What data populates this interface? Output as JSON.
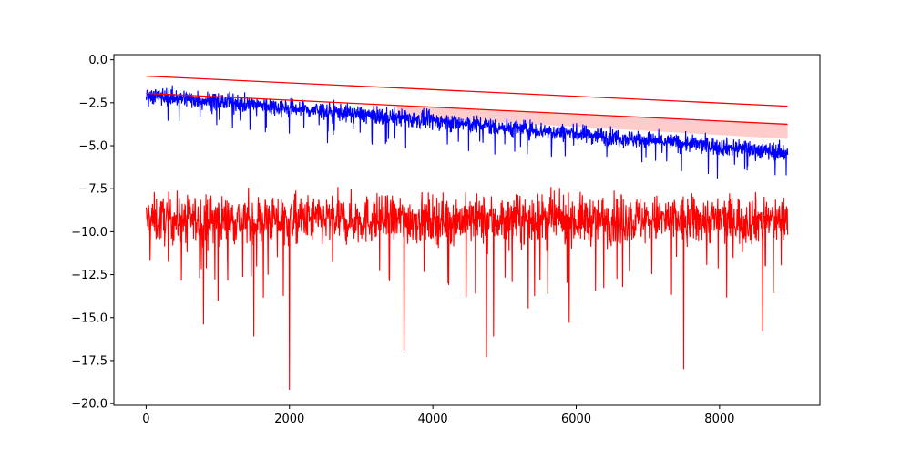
{
  "chart_data": {
    "type": "line",
    "title": "",
    "xlabel": "",
    "ylabel": "",
    "xlim": [
      -450,
      9400
    ],
    "ylim": [
      -20.1,
      0.3
    ],
    "x_ticks": [
      0,
      2000,
      4000,
      6000,
      8000
    ],
    "x_tick_labels": [
      "0",
      "2000",
      "4000",
      "6000",
      "8000"
    ],
    "y_ticks": [
      0,
      -2.5,
      -5,
      -7.5,
      -10,
      -12.5,
      -15,
      -17.5,
      -20
    ],
    "y_tick_labels": [
      "0.0",
      "−2.5",
      "−5.0",
      "−7.5",
      "−10.0",
      "−12.5",
      "−15.0",
      "−17.5",
      "−20.0"
    ],
    "grid": false,
    "legend": "none",
    "colors": {
      "series_a": "#0000ff",
      "series_b": "#ff0000",
      "bounds": "#ff0000",
      "band_fill": "#ff9a9a"
    },
    "x_range": [
      0,
      8950
    ],
    "series": [
      {
        "role": "noisy-trend",
        "color": "#0000ff",
        "trend_start": -2.05,
        "trend_end": -5.4,
        "noise_amplitude": 0.55,
        "min": -6.9,
        "max": -0.85
      },
      {
        "role": "noisy-flat",
        "color": "#ff0000",
        "level": -9.3,
        "noise_amplitude": 1.1,
        "max": -6.5,
        "min": -19.2,
        "spikes": [
          {
            "x": 800,
            "y": -15.4
          },
          {
            "x": 1500,
            "y": -16.1
          },
          {
            "x": 2000,
            "y": -19.2
          },
          {
            "x": 3600,
            "y": -16.9
          },
          {
            "x": 4750,
            "y": -17.3
          },
          {
            "x": 4850,
            "y": -16.1
          },
          {
            "x": 5900,
            "y": -15.3
          },
          {
            "x": 7500,
            "y": -18.0
          },
          {
            "x": 8600,
            "y": -15.8
          }
        ]
      }
    ],
    "bounds": {
      "x": [
        0,
        8950
      ],
      "upper": [
        -0.95,
        -2.7
      ],
      "lower": [
        -1.95,
        -3.75
      ],
      "shaded_from_x": 3500,
      "shaded_to_x": 8950,
      "shaded_bottom": [
        -3.3,
        -4.6
      ]
    }
  }
}
